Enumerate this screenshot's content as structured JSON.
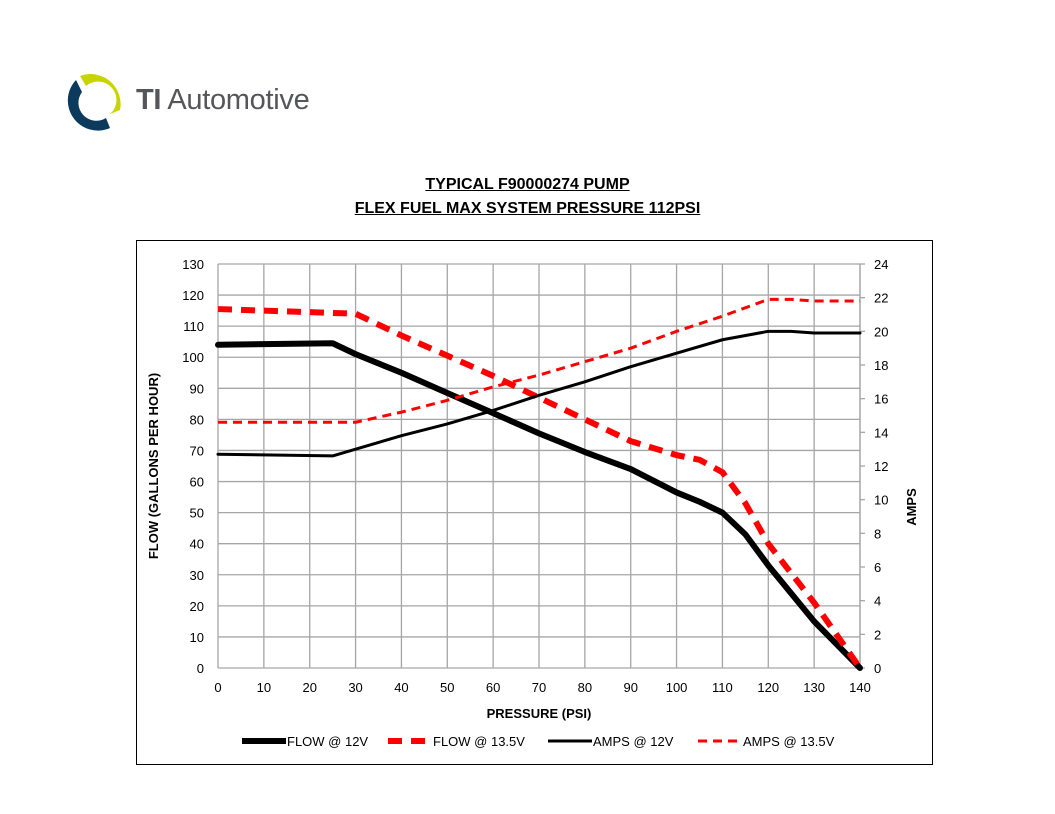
{
  "logo": {
    "brand_bold": "TI",
    "brand_rest": "Automotive",
    "colors": {
      "navy": "#0b3a5c",
      "lime": "#c8d400"
    }
  },
  "chart_data": {
    "type": "line",
    "title": "TYPICAL F90000274 PUMP",
    "subtitle": "FLEX FUEL MAX SYSTEM PRESSURE 112PSI",
    "xlabel": "PRESSURE (PSI)",
    "ylabel": "FLOW (GALLONS PER HOUR)",
    "y2label": "AMPS",
    "xlim": [
      0,
      140
    ],
    "ylim": [
      0,
      130
    ],
    "y2lim": [
      0,
      24
    ],
    "xticks": [
      0,
      10,
      20,
      30,
      40,
      50,
      60,
      70,
      80,
      90,
      100,
      110,
      120,
      130,
      140
    ],
    "yticks": [
      0,
      10,
      20,
      30,
      40,
      50,
      60,
      70,
      80,
      90,
      100,
      110,
      120,
      130
    ],
    "y2ticks": [
      0,
      2,
      4,
      6,
      8,
      10,
      12,
      14,
      16,
      18,
      20,
      22,
      24
    ],
    "grid": true,
    "legend": "bottom",
    "series": [
      {
        "name": "FLOW @ 12V",
        "axis": "left",
        "color": "#000000",
        "style": "solid-thick",
        "x": [
          0,
          25,
          30,
          40,
          50,
          60,
          70,
          80,
          90,
          100,
          105,
          110,
          115,
          120,
          130,
          140
        ],
        "y": [
          104,
          104.5,
          101,
          95,
          88.5,
          82,
          75.5,
          69.5,
          64,
          56.5,
          53.5,
          50,
          43,
          33,
          15,
          0
        ]
      },
      {
        "name": "FLOW @ 13.5V",
        "axis": "left",
        "color": "#ff0000",
        "style": "dashed-thick",
        "x": [
          0,
          10,
          20,
          30,
          40,
          50,
          60,
          70,
          80,
          90,
          100,
          105,
          110,
          115,
          120,
          130,
          140
        ],
        "y": [
          115.5,
          115,
          114.5,
          114,
          107,
          100.5,
          94,
          87,
          80,
          73,
          68.5,
          67,
          63,
          53,
          40,
          21,
          0
        ]
      },
      {
        "name": "AMPS @ 12V",
        "axis": "right",
        "color": "#000000",
        "style": "solid",
        "x": [
          0,
          25,
          30,
          40,
          50,
          60,
          70,
          80,
          90,
          100,
          110,
          120,
          125,
          130,
          140
        ],
        "y": [
          12.7,
          12.6,
          13,
          13.8,
          14.5,
          15.3,
          16.2,
          17,
          17.9,
          18.7,
          19.5,
          20,
          20,
          19.9,
          19.9
        ]
      },
      {
        "name": "AMPS @ 13.5V",
        "axis": "right",
        "color": "#ff0000",
        "style": "dashed",
        "x": [
          0,
          30,
          40,
          50,
          60,
          70,
          80,
          90,
          100,
          110,
          120,
          125,
          130,
          140
        ],
        "y": [
          14.6,
          14.6,
          15.2,
          15.9,
          16.7,
          17.4,
          18.2,
          19,
          20,
          20.9,
          21.9,
          21.9,
          21.8,
          21.8
        ]
      }
    ]
  }
}
